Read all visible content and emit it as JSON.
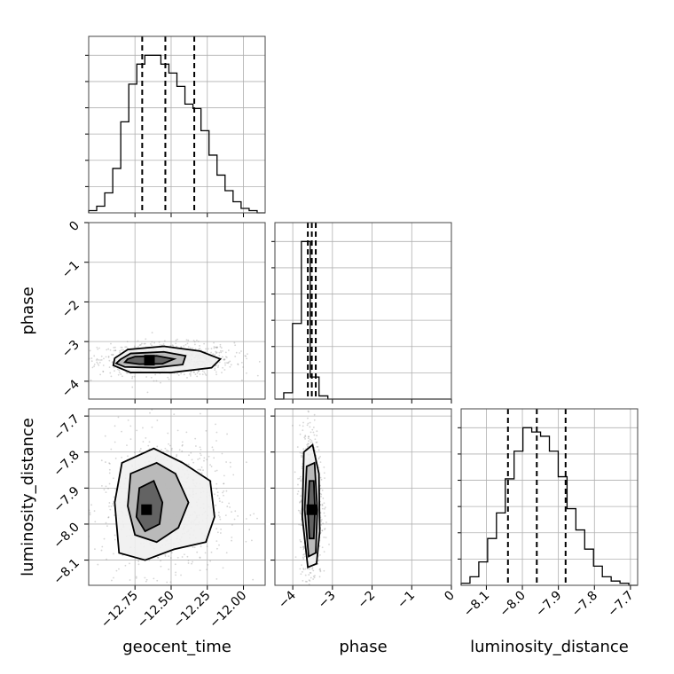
{
  "chart_data": {
    "type": "corner",
    "parameters": [
      "geocent_time",
      "phase",
      "luminosity_distance"
    ],
    "axes": {
      "geocent_time": {
        "label": "geocent_time",
        "range": [
          -13.07,
          -11.85
        ],
        "ticks": [
          -12.75,
          -12.5,
          -12.25,
          -12.0
        ],
        "tick_labels": [
          "−12.75",
          "−12.50",
          "−12.25",
          "−12.00"
        ]
      },
      "phase": {
        "label": "phase",
        "range": [
          -4.45,
          0
        ],
        "ticks": [
          -4,
          -3,
          -2,
          -1,
          0
        ],
        "tick_labels": [
          "−4",
          "−3",
          "−2",
          "−1",
          "0"
        ]
      },
      "luminosity_distance": {
        "label": "luminosity_distance",
        "range": [
          -8.17,
          -7.68
        ],
        "ticks": [
          -8.1,
          -8.0,
          -7.9,
          -7.8,
          -7.7
        ],
        "tick_labels": [
          "−8.1",
          "−8.0",
          "−7.9",
          "−7.8",
          "−7.7"
        ]
      }
    },
    "histograms": [
      {
        "parameter": "geocent_time",
        "bin_range": [
          -13.07,
          -11.85
        ],
        "counts": [
          1,
          3,
          9,
          20,
          41,
          58,
          67,
          71,
          71,
          67,
          63,
          57,
          49,
          47,
          37,
          26,
          17,
          10,
          5,
          2,
          1,
          0
        ],
        "quantiles": [
          -12.7,
          -12.54,
          -12.34
        ]
      },
      {
        "parameter": "phase",
        "bin_range": [
          -4.45,
          0
        ],
        "counts": [
          0,
          4,
          48,
          100,
          14,
          2,
          0,
          0,
          0,
          0,
          0,
          0,
          0,
          0,
          0,
          0,
          0,
          0,
          0,
          0
        ],
        "quantiles": [
          -3.62,
          -3.52,
          -3.42
        ]
      },
      {
        "parameter": "luminosity_distance",
        "bin_range": [
          -8.17,
          -7.68
        ],
        "counts": [
          1,
          4,
          11,
          22,
          34,
          50,
          63,
          74,
          72,
          70,
          63,
          51,
          36,
          26,
          17,
          9,
          4,
          2,
          1,
          0
        ],
        "quantiles": [
          -8.04,
          -7.96,
          -7.88
        ]
      }
    ],
    "joint": [
      {
        "x": "geocent_time",
        "y": "phase",
        "center": [
          -12.65,
          -3.47
        ],
        "contours": [
          [
            [
              -12.8,
              -3.44
            ],
            [
              -12.75,
              -3.38
            ],
            [
              -12.6,
              -3.36
            ],
            [
              -12.48,
              -3.44
            ],
            [
              -12.56,
              -3.56
            ],
            [
              -12.72,
              -3.57
            ],
            [
              -12.82,
              -3.52
            ]
          ],
          [
            [
              -12.85,
              -3.45
            ],
            [
              -12.78,
              -3.3
            ],
            [
              -12.55,
              -3.26
            ],
            [
              -12.4,
              -3.36
            ],
            [
              -12.42,
              -3.58
            ],
            [
              -12.62,
              -3.66
            ],
            [
              -12.82,
              -3.64
            ],
            [
              -12.88,
              -3.55
            ]
          ],
          [
            [
              -12.89,
              -3.42
            ],
            [
              -12.8,
              -3.2
            ],
            [
              -12.55,
              -3.12
            ],
            [
              -12.3,
              -3.24
            ],
            [
              -12.16,
              -3.44
            ],
            [
              -12.22,
              -3.66
            ],
            [
              -12.5,
              -3.78
            ],
            [
              -12.78,
              -3.78
            ],
            [
              -12.9,
              -3.6
            ]
          ]
        ]
      },
      {
        "x": "geocent_time",
        "y": "luminosity_distance",
        "center": [
          -12.67,
          -7.96
        ],
        "contours": [
          [
            [
              -12.72,
              -7.9
            ],
            [
              -12.62,
              -7.88
            ],
            [
              -12.56,
              -7.94
            ],
            [
              -12.58,
              -8.0
            ],
            [
              -12.68,
              -8.02
            ],
            [
              -12.74,
              -7.98
            ]
          ],
          [
            [
              -12.78,
              -7.86
            ],
            [
              -12.6,
              -7.83
            ],
            [
              -12.47,
              -7.86
            ],
            [
              -12.38,
              -7.94
            ],
            [
              -12.45,
              -8.01
            ],
            [
              -12.6,
              -8.05
            ],
            [
              -12.75,
              -8.03
            ],
            [
              -12.8,
              -7.95
            ]
          ],
          [
            [
              -12.84,
              -7.83
            ],
            [
              -12.62,
              -7.79
            ],
            [
              -12.42,
              -7.83
            ],
            [
              -12.23,
              -7.88
            ],
            [
              -12.2,
              -7.98
            ],
            [
              -12.26,
              -8.05
            ],
            [
              -12.48,
              -8.07
            ],
            [
              -12.68,
              -8.1
            ],
            [
              -12.86,
              -8.08
            ],
            [
              -12.89,
              -7.94
            ]
          ]
        ]
      },
      {
        "x": "phase",
        "y": "luminosity_distance",
        "center": [
          -3.52,
          -7.96
        ],
        "contours": [
          [
            [
              -3.58,
              -7.88
            ],
            [
              -3.47,
              -7.88
            ],
            [
              -3.44,
              -7.96
            ],
            [
              -3.47,
              -8.04
            ],
            [
              -3.58,
              -8.04
            ],
            [
              -3.62,
              -7.96
            ]
          ],
          [
            [
              -3.65,
              -7.84
            ],
            [
              -3.45,
              -7.83
            ],
            [
              -3.38,
              -7.96
            ],
            [
              -3.42,
              -8.08
            ],
            [
              -3.6,
              -8.09
            ],
            [
              -3.7,
              -7.96
            ]
          ],
          [
            [
              -3.72,
              -7.8
            ],
            [
              -3.5,
              -7.78
            ],
            [
              -3.34,
              -7.86
            ],
            [
              -3.32,
              -8.02
            ],
            [
              -3.4,
              -8.11
            ],
            [
              -3.62,
              -8.12
            ],
            [
              -3.76,
              -7.98
            ]
          ]
        ]
      }
    ],
    "grid": true
  }
}
